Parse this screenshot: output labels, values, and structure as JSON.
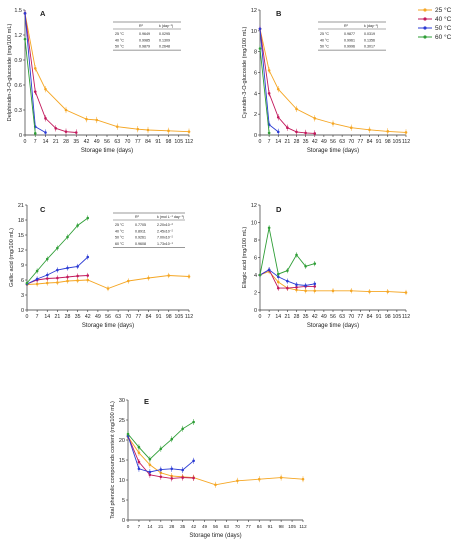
{
  "legend": {
    "entries": [
      {
        "label": "25 °C",
        "color": "#f5a623"
      },
      {
        "label": "40 °C",
        "color": "#c2185b"
      },
      {
        "label": "50 °C",
        "color": "#2b3bd4"
      },
      {
        "label": "60 °C",
        "color": "#2e9e36"
      }
    ]
  },
  "chart_data": [
    {
      "type": "line",
      "panel": "A",
      "ylabel": "Delphinidin-3-O-glucoside (mg/100 mL)",
      "xlabel": "Storage time (days)",
      "ylim": [
        0,
        1.5
      ],
      "yticks": [
        0,
        0.3,
        0.6,
        0.9,
        1.2,
        1.5
      ],
      "ytick_labels": [
        "0",
        "0.3",
        "0.6",
        "0.9",
        "1.2",
        "1.5"
      ],
      "xticks": [
        0,
        7,
        14,
        21,
        28,
        35,
        42,
        49,
        56,
        63,
        70,
        77,
        84,
        91,
        98,
        105,
        112
      ],
      "xlim": [
        0,
        112
      ],
      "series": [
        {
          "name": "25 °C",
          "color": "#f5a623",
          "x": [
            0,
            7,
            14,
            28,
            42,
            49,
            63,
            77,
            84,
            98,
            112
          ],
          "y": [
            1.46,
            0.8,
            0.55,
            0.3,
            0.19,
            0.18,
            0.1,
            0.07,
            0.06,
            0.05,
            0.04
          ]
        },
        {
          "name": "40 °C",
          "color": "#c2185b",
          "x": [
            0,
            7,
            14,
            21,
            28,
            35
          ],
          "y": [
            1.46,
            0.52,
            0.2,
            0.08,
            0.04,
            0.03
          ]
        },
        {
          "name": "50 °C",
          "color": "#2b3bd4",
          "x": [
            0,
            7,
            14
          ],
          "y": [
            1.46,
            0.1,
            0.03
          ]
        },
        {
          "name": "60 °C",
          "color": "#2e9e36",
          "x": [
            0,
            7
          ],
          "y": [
            1.15,
            0.02
          ]
        }
      ],
      "table": {
        "headers": [
          "",
          "R²",
          "k (day⁻¹)"
        ],
        "rows": [
          [
            "25 °C",
            "0.9649",
            "0.0295"
          ],
          [
            "40 °C",
            "0.9985",
            "0.1309"
          ],
          [
            "50 °C",
            "0.9879",
            "0.2648"
          ]
        ]
      }
    },
    {
      "type": "line",
      "panel": "B",
      "ylabel": "Cyanidin-3-O-glucoside (mg/100 mL)",
      "xlabel": "Storage time (days)",
      "ylim": [
        0,
        12
      ],
      "yticks": [
        0,
        2,
        4,
        6,
        8,
        10,
        12
      ],
      "ytick_labels": [
        "0",
        "2",
        "4",
        "6",
        "8",
        "10",
        "12"
      ],
      "xticks": [
        0,
        7,
        14,
        21,
        28,
        35,
        42,
        49,
        56,
        63,
        70,
        77,
        84,
        91,
        98,
        105,
        112
      ],
      "xlim": [
        0,
        112
      ],
      "series": [
        {
          "name": "25 °C",
          "color": "#f5a623",
          "x": [
            0,
            7,
            14,
            28,
            42,
            56,
            70,
            84,
            98,
            112
          ],
          "y": [
            10.2,
            6.2,
            4.4,
            2.5,
            1.6,
            1.1,
            0.7,
            0.5,
            0.35,
            0.25
          ]
        },
        {
          "name": "40 °C",
          "color": "#c2185b",
          "x": [
            0,
            7,
            14,
            21,
            28,
            35,
            42
          ],
          "y": [
            10.2,
            4.0,
            1.7,
            0.7,
            0.3,
            0.2,
            0.15
          ]
        },
        {
          "name": "50 °C",
          "color": "#2b3bd4",
          "x": [
            0,
            7,
            14
          ],
          "y": [
            10.2,
            1.0,
            0.3
          ]
        },
        {
          "name": "60 °C",
          "color": "#2e9e36",
          "x": [
            0,
            7
          ],
          "y": [
            8.3,
            0.2
          ]
        }
      ],
      "table": {
        "headers": [
          "",
          "R²",
          "k (day⁻¹)"
        ],
        "rows": [
          [
            "25 °C",
            "0.9877",
            "0.0319"
          ],
          [
            "40 °C",
            "0.9961",
            "0.1356"
          ],
          [
            "50 °C",
            "0.9996",
            "0.3017"
          ]
        ]
      }
    },
    {
      "type": "line",
      "panel": "C",
      "ylabel": "Gallic acid (mg/100 mL)",
      "xlabel": "Storage time (days)",
      "ylim": [
        0,
        21
      ],
      "yticks": [
        0,
        3,
        6,
        9,
        12,
        15,
        18,
        21
      ],
      "ytick_labels": [
        "0",
        "3",
        "6",
        "9",
        "12",
        "15",
        "18",
        "21"
      ],
      "xticks": [
        0,
        7,
        14,
        21,
        28,
        35,
        42,
        49,
        56,
        63,
        70,
        77,
        84,
        91,
        98,
        105,
        112
      ],
      "xlim": [
        0,
        112
      ],
      "series": [
        {
          "name": "25 °C",
          "color": "#f5a623",
          "x": [
            0,
            7,
            14,
            21,
            28,
            35,
            42,
            56,
            70,
            84,
            98,
            112
          ],
          "y": [
            5.1,
            5.2,
            5.4,
            5.5,
            5.8,
            5.9,
            6.0,
            4.3,
            5.8,
            6.4,
            6.9,
            6.7
          ]
        },
        {
          "name": "40 °C",
          "color": "#c2185b",
          "x": [
            0,
            7,
            14,
            21,
            28,
            35,
            42
          ],
          "y": [
            5.2,
            6.0,
            6.3,
            6.4,
            6.6,
            6.8,
            6.9
          ]
        },
        {
          "name": "50 °C",
          "color": "#2b3bd4",
          "x": [
            0,
            7,
            14,
            21,
            28,
            35,
            42
          ],
          "y": [
            5.2,
            6.2,
            7.0,
            8.0,
            8.4,
            8.7,
            10.6
          ]
        },
        {
          "name": "60 °C",
          "color": "#2e9e36",
          "x": [
            0,
            7,
            14,
            21,
            28,
            35,
            42
          ],
          "y": [
            5.4,
            7.8,
            10.2,
            12.4,
            14.6,
            16.9,
            18.4
          ]
        }
      ],
      "table": {
        "headers": [
          "",
          "R²",
          "k (mol L⁻¹ day⁻¹)"
        ],
        "rows": [
          [
            "25 °C",
            "0.7705",
            "2.20x10⁻²"
          ],
          [
            "40 °C",
            "0.8911",
            "2.45x10⁻²"
          ],
          [
            "50 °C",
            "0.9261",
            "7.00x10⁻²"
          ],
          [
            "60 °C",
            "0.9608",
            "1.73x10⁻¹"
          ]
        ]
      }
    },
    {
      "type": "line",
      "panel": "D",
      "ylabel": "Ellagic acid (mg/100 mL)",
      "xlabel": "Storage time (days)",
      "ylim": [
        0,
        12
      ],
      "yticks": [
        0,
        2,
        4,
        6,
        8,
        10,
        12
      ],
      "ytick_labels": [
        "0",
        "2",
        "4",
        "6",
        "8",
        "10",
        "12"
      ],
      "xticks": [
        0,
        7,
        14,
        21,
        28,
        35,
        42,
        49,
        56,
        63,
        70,
        77,
        84,
        91,
        98,
        105,
        112
      ],
      "xlim": [
        0,
        112
      ],
      "series": [
        {
          "name": "25 °C",
          "color": "#f5a623",
          "x": [
            0,
            7,
            14,
            21,
            28,
            35,
            42,
            56,
            70,
            84,
            98,
            112
          ],
          "y": [
            4.0,
            4.4,
            3.2,
            2.5,
            2.3,
            2.2,
            2.2,
            2.2,
            2.2,
            2.1,
            2.1,
            2.0
          ]
        },
        {
          "name": "40 °C",
          "color": "#c2185b",
          "x": [
            0,
            7,
            14,
            21,
            28,
            35,
            42
          ],
          "y": [
            4.0,
            4.6,
            2.5,
            2.5,
            2.6,
            2.7,
            2.7
          ]
        },
        {
          "name": "50 °C",
          "color": "#2b3bd4",
          "x": [
            0,
            7,
            14,
            21,
            28,
            35,
            42
          ],
          "y": [
            4.0,
            4.6,
            3.8,
            3.3,
            2.9,
            2.8,
            3.0
          ]
        },
        {
          "name": "60 °C",
          "color": "#2e9e36",
          "x": [
            0,
            7,
            14,
            21,
            28,
            35,
            42
          ],
          "y": [
            4.0,
            9.4,
            4.1,
            4.5,
            6.3,
            5.0,
            5.3
          ]
        }
      ]
    },
    {
      "type": "line",
      "panel": "E",
      "ylabel": "Total phenolic compounds content (mg/100 mL)",
      "xlabel": "Storage time (days)",
      "ylim": [
        0,
        30
      ],
      "yticks": [
        0,
        5,
        10,
        15,
        20,
        25,
        30
      ],
      "ytick_labels": [
        "0",
        "5",
        "10",
        "15",
        "20",
        "25",
        "30"
      ],
      "xticks": [
        0,
        7,
        14,
        21,
        28,
        35,
        42,
        49,
        56,
        63,
        70,
        77,
        84,
        91,
        98,
        105,
        112
      ],
      "xlim": [
        0,
        112
      ],
      "series": [
        {
          "name": "25 °C",
          "color": "#f5a623",
          "x": [
            0,
            7,
            14,
            21,
            28,
            35,
            42,
            56,
            70,
            84,
            98,
            112
          ],
          "y": [
            20.8,
            16.8,
            13.8,
            11.8,
            11.0,
            10.8,
            10.6,
            8.8,
            9.8,
            10.2,
            10.6,
            10.2
          ]
        },
        {
          "name": "40 °C",
          "color": "#c2185b",
          "x": [
            0,
            7,
            14,
            21,
            28,
            35,
            42
          ],
          "y": [
            21.0,
            14.5,
            11.3,
            10.8,
            10.4,
            10.6,
            10.5
          ]
        },
        {
          "name": "50 °C",
          "color": "#2b3bd4",
          "x": [
            0,
            7,
            14,
            21,
            28,
            35,
            42
          ],
          "y": [
            21.0,
            12.8,
            12.0,
            12.6,
            12.8,
            12.5,
            14.8
          ]
        },
        {
          "name": "60 °C",
          "color": "#2e9e36",
          "x": [
            0,
            7,
            14,
            21,
            28,
            35,
            42
          ],
          "y": [
            21.5,
            18.2,
            15.2,
            17.8,
            20.2,
            22.8,
            24.5
          ]
        }
      ]
    }
  ]
}
